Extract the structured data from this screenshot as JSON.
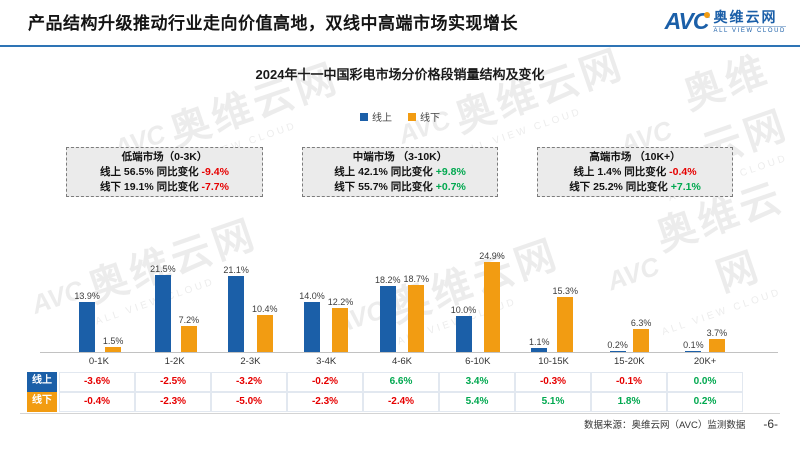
{
  "header": {
    "title": "产品结构升级推动行业走向价值高地，双线中高端市场实现增长",
    "logo": {
      "text": "AVC",
      "cn": "奥维云网",
      "sub": "ALL VIEW CLOUD"
    }
  },
  "chart_title": "2024年十一中国彩电市场分价格段销量结构及变化",
  "segment_boxes": [
    {
      "title": "低端市场（0-3K）",
      "lines": [
        {
          "text": "线上 56.5% 同比变化",
          "change": "-9.4%"
        },
        {
          "text": "线下 19.1% 同比变化",
          "change": "-7.7%"
        }
      ]
    },
    {
      "title": "中端市场 （3-10K）",
      "lines": [
        {
          "text": "线上 42.1% 同比变化",
          "change": "+9.8%"
        },
        {
          "text": "线下 55.7% 同比变化",
          "change": "+0.7%"
        }
      ]
    },
    {
      "title": "高端市场 （10K+）",
      "lines": [
        {
          "text": "线上 1.4% 同比变化",
          "change": "-0.4%"
        },
        {
          "text": "线下 25.2% 同比变化",
          "change": "+7.1%"
        }
      ]
    }
  ],
  "chart_data": {
    "type": "bar",
    "title": "2024年十一中国彩电市场分价格段销量结构及变化",
    "unit": "%",
    "ylim": [
      0,
      26
    ],
    "legend_position": "top",
    "categories": [
      "0-1K",
      "1-2K",
      "2-3K",
      "3-4K",
      "4-6K",
      "6-10K",
      "10-15K",
      "15-20K",
      "20K+"
    ],
    "series": [
      {
        "name": "线上",
        "color": "#1b5fa8",
        "values": [
          13.9,
          21.5,
          21.1,
          14.0,
          18.2,
          10.0,
          1.1,
          0.2,
          0.1
        ]
      },
      {
        "name": "线下",
        "color": "#f29c12",
        "values": [
          1.5,
          7.2,
          10.4,
          12.2,
          18.7,
          24.9,
          15.3,
          6.3,
          3.7
        ]
      }
    ],
    "change_rows": [
      {
        "label": "线上",
        "color": "#1b5fa8",
        "values": [
          "-3.6%",
          "-2.5%",
          "-3.2%",
          "-0.2%",
          "6.6%",
          "3.4%",
          "-0.3%",
          "-0.1%",
          "0.0%"
        ]
      },
      {
        "label": "线下",
        "color": "#f29c12",
        "values": [
          "-0.4%",
          "-2.3%",
          "-5.0%",
          "-2.3%",
          "-2.4%",
          "5.4%",
          "5.1%",
          "1.8%",
          "0.2%"
        ]
      }
    ]
  },
  "footer": {
    "source": "数据来源：奥维云网（AVC）监测数据",
    "page": "-6-"
  },
  "watermark": {
    "text": "奥维云网",
    "sub": "ALL VIEW CLOUD"
  }
}
